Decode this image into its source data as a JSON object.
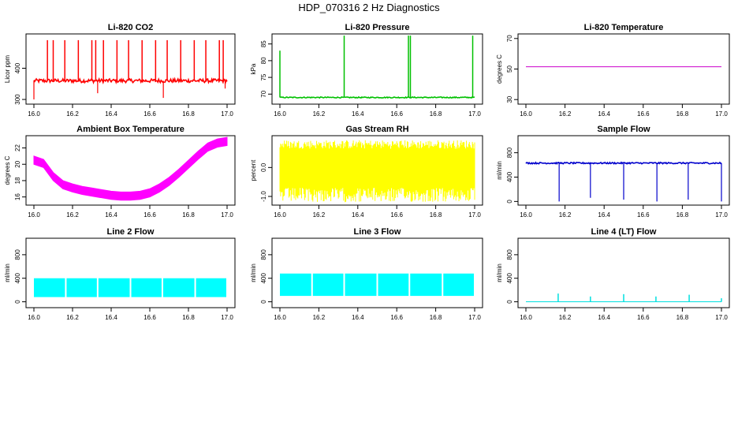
{
  "title": "HDP_070316  2 Hz Diagnostics",
  "chart_data": [
    {
      "type": "line",
      "title": "Li-820 CO2",
      "ylabel": "Licor ppm",
      "xlim": [
        16.0,
        17.0
      ],
      "ylim": [
        285,
        510
      ],
      "xticks": [
        "16.0",
        "16.2",
        "16.4",
        "16.6",
        "16.8",
        "17.0"
      ],
      "yticks": [
        300,
        400
      ],
      "color": "#ff0000",
      "series": [
        {
          "baseline": 360,
          "noise": 6,
          "spikes_up": [
            [
              16.07,
              490
            ],
            [
              16.1,
              490
            ],
            [
              16.16,
              490
            ],
            [
              16.23,
              490
            ],
            [
              16.3,
              490
            ],
            [
              16.32,
              490
            ],
            [
              16.36,
              490
            ],
            [
              16.43,
              490
            ],
            [
              16.49,
              490
            ],
            [
              16.56,
              490
            ],
            [
              16.63,
              490
            ],
            [
              16.69,
              490
            ],
            [
              16.76,
              490
            ],
            [
              16.83,
              490
            ],
            [
              16.89,
              490
            ],
            [
              16.96,
              490
            ],
            [
              16.98,
              490
            ]
          ],
          "spikes_down": [
            [
              16.0,
              300
            ],
            [
              16.33,
              320
            ],
            [
              16.67,
              305
            ],
            [
              16.99,
              335
            ]
          ]
        }
      ]
    },
    {
      "type": "line",
      "title": "Li-820 Pressure",
      "ylabel": "kPa",
      "xlim": [
        16.0,
        17.0
      ],
      "ylim": [
        67,
        88
      ],
      "xticks": [
        "16.0",
        "16.2",
        "16.4",
        "16.6",
        "16.8",
        "17.0"
      ],
      "yticks": [
        70,
        75,
        80,
        85
      ],
      "color": "#00c000",
      "series": [
        {
          "baseline": 69,
          "noise": 0.15,
          "spikes_up": [
            [
              16.0,
              83
            ],
            [
              16.33,
              87.5
            ],
            [
              16.66,
              87.5
            ],
            [
              16.67,
              87.5
            ],
            [
              16.99,
              87.5
            ]
          ],
          "spikes_down": []
        }
      ]
    },
    {
      "type": "line",
      "title": "Li-820 Temperature",
      "ylabel": "degrees C",
      "xlim": [
        16.0,
        17.0
      ],
      "ylim": [
        27,
        73
      ],
      "xticks": [
        "16.0",
        "16.2",
        "16.4",
        "16.6",
        "16.8",
        "17.0"
      ],
      "yticks": [
        30,
        50,
        70
      ],
      "color": "#cc00cc",
      "series": [
        {
          "baseline": 51.5,
          "noise": 0,
          "spikes_up": [],
          "spikes_down": []
        }
      ]
    },
    {
      "type": "area",
      "title": "Ambient Box Temperature",
      "ylabel": "degrees C",
      "xlim": [
        16.0,
        17.0
      ],
      "ylim": [
        15,
        23.5
      ],
      "xticks": [
        "16.0",
        "16.2",
        "16.4",
        "16.6",
        "16.8",
        "17.0"
      ],
      "yticks": [
        16,
        18,
        20,
        22
      ],
      "color": "#ff00ff",
      "series": [
        {
          "x": [
            16.0,
            16.05,
            16.1,
            16.15,
            16.2,
            16.25,
            16.3,
            16.35,
            16.4,
            16.45,
            16.5,
            16.55,
            16.6,
            16.65,
            16.7,
            16.75,
            16.8,
            16.85,
            16.9,
            16.95,
            17.0
          ],
          "low": [
            20.0,
            19.6,
            18.0,
            17.0,
            16.6,
            16.3,
            16.1,
            15.9,
            15.7,
            15.6,
            15.6,
            15.7,
            16.0,
            16.6,
            17.4,
            18.4,
            19.5,
            20.6,
            21.6,
            22.1,
            22.3
          ],
          "high": [
            21.0,
            20.6,
            19.0,
            18.0,
            17.6,
            17.3,
            17.1,
            16.9,
            16.7,
            16.6,
            16.6,
            16.7,
            17.0,
            17.6,
            18.4,
            19.4,
            20.5,
            21.6,
            22.6,
            23.1,
            23.3
          ]
        }
      ]
    },
    {
      "type": "line",
      "title": "Gas Stream RH",
      "ylabel": "percent",
      "xlim": [
        16.0,
        17.0
      ],
      "ylim": [
        -1.3,
        1.1
      ],
      "xticks": [
        "16.0",
        "16.2",
        "16.4",
        "16.6",
        "16.8",
        "17.0"
      ],
      "yticks": [
        "-1.0",
        "0.0"
      ],
      "color": "#ffff00",
      "series": [
        {
          "baseline": 0,
          "band_low": -0.7,
          "band_high": 0.65,
          "min": -1.2,
          "max": 0.95
        }
      ]
    },
    {
      "type": "line",
      "title": "Sample Flow",
      "ylabel": "ml/min",
      "xlim": [
        16.0,
        17.0
      ],
      "ylim": [
        -60,
        1080
      ],
      "xticks": [
        "16.0",
        "16.2",
        "16.4",
        "16.6",
        "16.8",
        "17.0"
      ],
      "yticks": [
        0,
        400,
        800
      ],
      "color": "#0000cc",
      "series": [
        {
          "baseline": 630,
          "noise": 12,
          "spikes_up": [],
          "spikes_down": [
            [
              16.17,
              0
            ],
            [
              16.33,
              60
            ],
            [
              16.5,
              30
            ],
            [
              16.67,
              0
            ],
            [
              16.83,
              30
            ],
            [
              17.0,
              0
            ]
          ]
        }
      ]
    },
    {
      "type": "area",
      "title": "Line 2 Flow",
      "ylabel": "ml/min",
      "xlim": [
        16.0,
        17.0
      ],
      "ylim": [
        -100,
        1080
      ],
      "xticks": [
        "16.0",
        "16.2",
        "16.4",
        "16.6",
        "16.8",
        "17.0"
      ],
      "yticks": [
        0,
        400,
        800
      ],
      "color": "#00ffff",
      "series": [
        {
          "band_low": 80,
          "band_high": 400,
          "gaps": [
            16.165,
            16.33,
            16.5,
            16.665,
            16.835
          ]
        }
      ]
    },
    {
      "type": "area",
      "title": "Line 3 Flow",
      "ylabel": "ml/min",
      "xlim": [
        16.0,
        17.0
      ],
      "ylim": [
        -100,
        1080
      ],
      "xticks": [
        "16.0",
        "16.2",
        "16.4",
        "16.6",
        "16.8",
        "17.0"
      ],
      "yticks": [
        0,
        400,
        800
      ],
      "color": "#00ffff",
      "series": [
        {
          "band_low": 100,
          "band_high": 480,
          "gaps": [
            16.165,
            16.33,
            16.5,
            16.665,
            16.835
          ]
        }
      ]
    },
    {
      "type": "line",
      "title": "Line 4 (LT) Flow",
      "ylabel": "ml/min",
      "xlim": [
        16.0,
        17.0
      ],
      "ylim": [
        -100,
        1080
      ],
      "xticks": [
        "16.0",
        "16.2",
        "16.4",
        "16.6",
        "16.8",
        "17.0"
      ],
      "yticks": [
        0,
        400,
        800
      ],
      "color": "#00e0e0",
      "series": [
        {
          "baseline": 0,
          "noise": 0,
          "spikes_up": [
            [
              16.165,
              140
            ],
            [
              16.33,
              90
            ],
            [
              16.5,
              130
            ],
            [
              16.665,
              90
            ],
            [
              16.835,
              120
            ],
            [
              17.0,
              60
            ]
          ],
          "spikes_down": []
        }
      ]
    }
  ]
}
